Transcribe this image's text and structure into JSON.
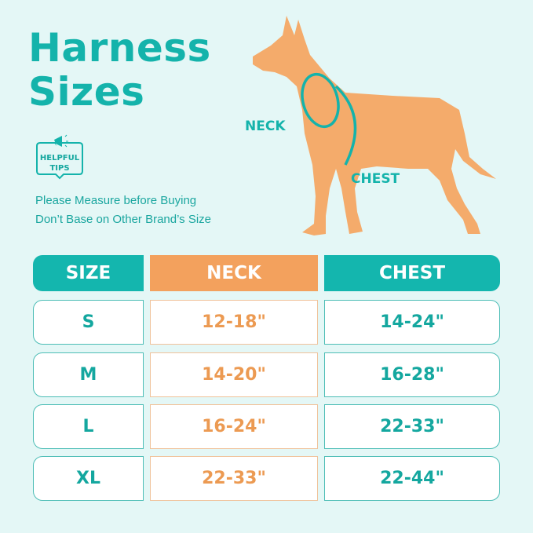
{
  "title": {
    "line1": "Harness",
    "line2": "Sizes"
  },
  "tips": {
    "badge_line1": "HELPFUL",
    "badge_line2": "TIPS",
    "line1": "Please Measure before Buying",
    "line2": "Don’t Base on Other Brand’s Size"
  },
  "dog_labels": {
    "neck": "NECK",
    "chest": "CHEST"
  },
  "colors": {
    "teal": "#14b6ae",
    "orange": "#f3a15d",
    "background": "#e4f7f6"
  },
  "table": {
    "headers": [
      "SIZE",
      "NECK",
      "CHEST"
    ],
    "rows": [
      {
        "size": "S",
        "neck": "12-18\"",
        "chest": "14-24\""
      },
      {
        "size": "M",
        "neck": "14-20\"",
        "chest": "16-28\""
      },
      {
        "size": "L",
        "neck": "16-24\"",
        "chest": "22-33\""
      },
      {
        "size": "XL",
        "neck": "22-33\"",
        "chest": "22-44\""
      }
    ]
  }
}
